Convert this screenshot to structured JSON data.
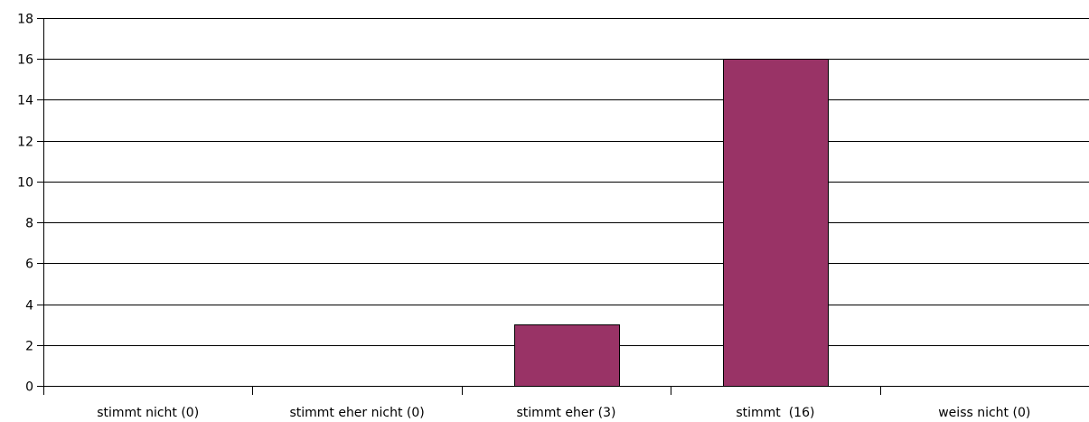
{
  "chart_data": {
    "type": "bar",
    "title": "",
    "xlabel": "",
    "ylabel": "",
    "categories": [
      "stimmt nicht (0)",
      "stimmt eher nicht (0)",
      "stimmt eher (3)",
      "stimmt  (16)",
      "weiss nicht (0)"
    ],
    "values": [
      0,
      0,
      3,
      16,
      0
    ],
    "ylim": [
      0,
      18
    ],
    "yticks": [
      0,
      2,
      4,
      6,
      8,
      10,
      12,
      14,
      16,
      18
    ],
    "grid": true,
    "legend": "none",
    "bar_color": "#993366",
    "bar_edge_color": "#000000"
  }
}
